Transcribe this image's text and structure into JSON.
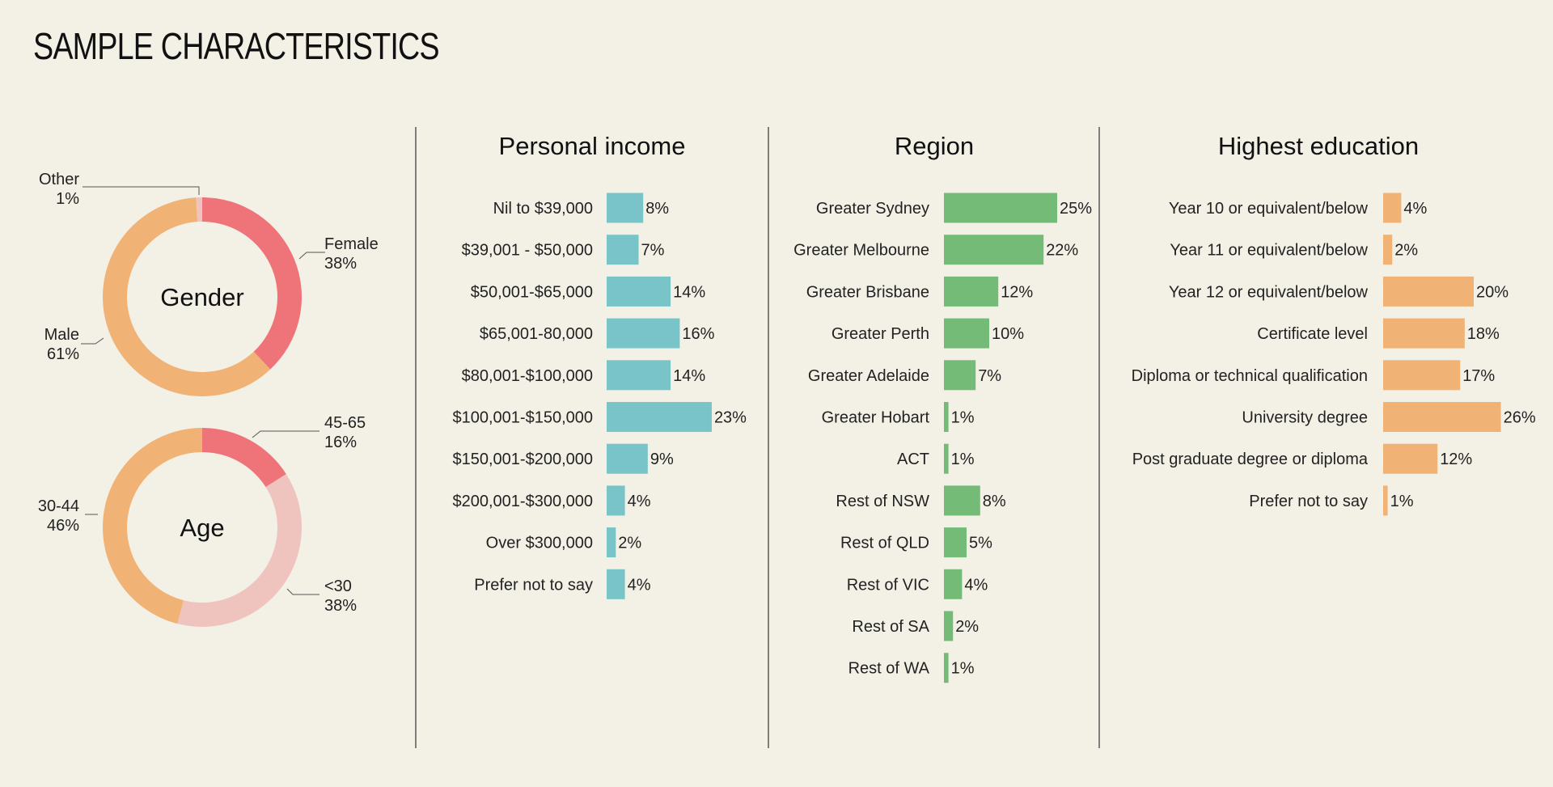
{
  "title": "SAMPLE CHARACTERISTICS",
  "colors": {
    "background": "#f3f0e6",
    "income": "#79c4c8",
    "region": "#74bb78",
    "education": "#f0b275",
    "female": "#ef7479",
    "male": "#f0b275",
    "other": "#efc4bf",
    "age_45_65": "#ef7479",
    "age_lt30": "#efc4bf",
    "age_30_44": "#f0b275"
  },
  "chart_data": [
    {
      "type": "pie",
      "title": "Gender",
      "slices": [
        {
          "name": "Female",
          "value": 38,
          "label": "38%"
        },
        {
          "name": "Male",
          "value": 61,
          "label": "61%"
        },
        {
          "name": "Other",
          "value": 1,
          "label": "1%"
        }
      ]
    },
    {
      "type": "pie",
      "title": "Age",
      "slices": [
        {
          "name": "45-65",
          "value": 16,
          "label": "16%"
        },
        {
          "name": "<30",
          "value": 38,
          "label": "38%"
        },
        {
          "name": "30-44",
          "value": 46,
          "label": "46%"
        }
      ]
    },
    {
      "type": "bar",
      "title": "Personal income",
      "categories": [
        "Nil to $39,000",
        "$39,001 - $50,000",
        "$50,001-$65,000",
        "$65,001-80,000",
        "$80,001-$100,000",
        "$100,001-$150,000",
        "$150,001-$200,000",
        "$200,001-$300,000",
        "Over $300,000",
        "Prefer not to say"
      ],
      "values": [
        8,
        7,
        14,
        16,
        14,
        23,
        9,
        4,
        2,
        4
      ],
      "labels": [
        "8%",
        "7%",
        "14%",
        "16%",
        "14%",
        "23%",
        "9%",
        "4%",
        "2%",
        "4%"
      ]
    },
    {
      "type": "bar",
      "title": "Region",
      "categories": [
        "Greater Sydney",
        "Greater Melbourne",
        "Greater Brisbane",
        "Greater Perth",
        "Greater Adelaide",
        "Greater Hobart",
        "ACT",
        "Rest of NSW",
        "Rest of QLD",
        "Rest of VIC",
        "Rest of SA",
        "Rest of WA"
      ],
      "values": [
        25,
        22,
        12,
        10,
        7,
        1,
        1,
        8,
        5,
        4,
        2,
        1
      ],
      "labels": [
        "25%",
        "22%",
        "12%",
        "10%",
        "7%",
        "1%",
        "1%",
        "8%",
        "5%",
        "4%",
        "2%",
        "1%"
      ]
    },
    {
      "type": "bar",
      "title": "Highest education",
      "categories": [
        "Year 10 or equivalent/below",
        "Year 11 or equivalent/below",
        "Year 12 or equivalent/below",
        "Certificate level",
        "Diploma or technical qualification",
        "University degree",
        "Post graduate degree or diploma",
        "Prefer not to say"
      ],
      "values": [
        4,
        2,
        20,
        18,
        17,
        26,
        12,
        1
      ],
      "labels": [
        "4%",
        "2%",
        "20%",
        "18%",
        "17%",
        "26%",
        "12%",
        "1%"
      ]
    }
  ]
}
